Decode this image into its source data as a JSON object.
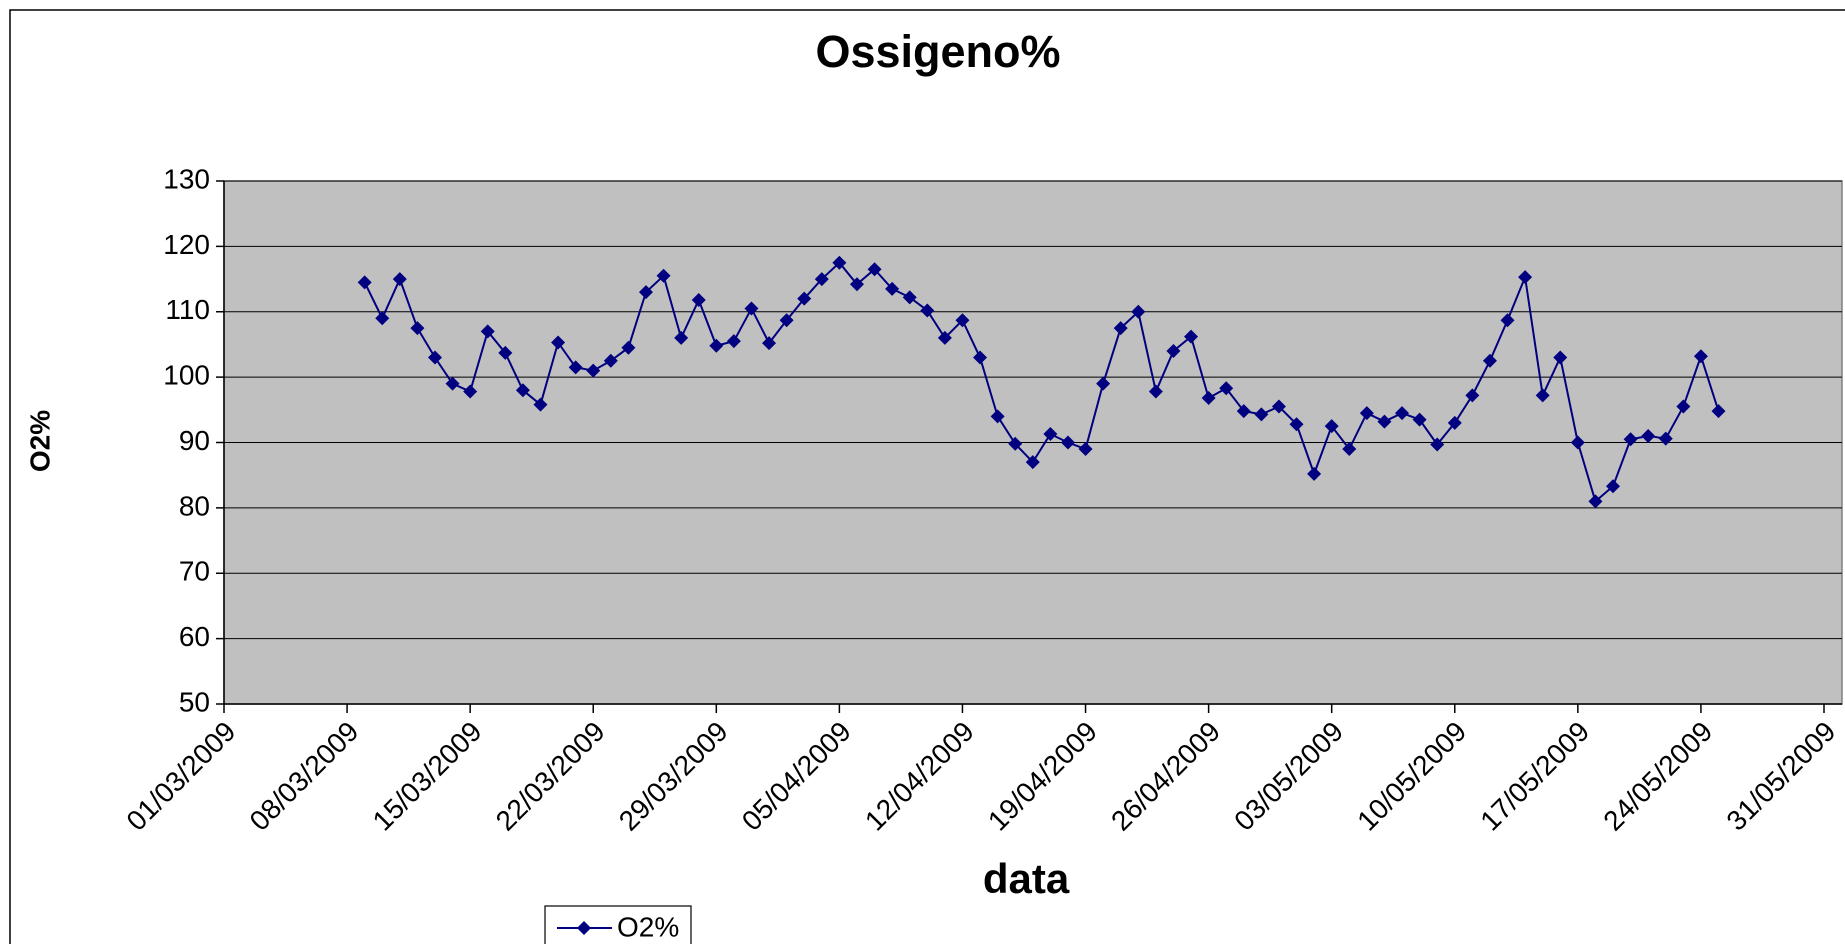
{
  "chart_data": {
    "type": "line",
    "title": "Ossigeno%",
    "xlabel": "data",
    "ylabel": "O2%",
    "x": [
      "09/03/2009",
      "10/03/2009",
      "11/03/2009",
      "12/03/2009",
      "13/03/2009",
      "14/03/2009",
      "15/03/2009",
      "16/03/2009",
      "17/03/2009",
      "18/03/2009",
      "19/03/2009",
      "20/03/2009",
      "21/03/2009",
      "22/03/2009",
      "23/03/2009",
      "24/03/2009",
      "25/03/2009",
      "26/03/2009",
      "27/03/2009",
      "28/03/2009",
      "29/03/2009",
      "30/03/2009",
      "31/03/2009",
      "01/04/2009",
      "02/04/2009",
      "03/04/2009",
      "04/04/2009",
      "05/04/2009",
      "06/04/2009",
      "07/04/2009",
      "08/04/2009",
      "09/04/2009",
      "10/04/2009",
      "11/04/2009",
      "12/04/2009",
      "13/04/2009",
      "14/04/2009",
      "15/04/2009",
      "16/04/2009",
      "17/04/2009",
      "18/04/2009",
      "19/04/2009",
      "20/04/2009",
      "21/04/2009",
      "22/04/2009",
      "23/04/2009",
      "24/04/2009",
      "25/04/2009",
      "26/04/2009",
      "27/04/2009",
      "28/04/2009",
      "29/04/2009",
      "30/04/2009",
      "01/05/2009",
      "02/05/2009",
      "03/05/2009",
      "04/05/2009",
      "05/05/2009",
      "06/05/2009",
      "07/05/2009",
      "08/05/2009",
      "09/05/2009",
      "10/05/2009",
      "11/05/2009",
      "12/05/2009",
      "13/05/2009",
      "14/05/2009",
      "15/05/2009",
      "16/05/2009",
      "17/05/2009",
      "18/05/2009",
      "19/05/2009",
      "20/05/2009",
      "21/05/2009",
      "22/05/2009",
      "23/05/2009",
      "24/05/2009",
      "25/05/2009"
    ],
    "series": [
      {
        "name": "O2%",
        "color": "#000080",
        "values": [
          114.5,
          109,
          115,
          107.5,
          103,
          99,
          97.8,
          107,
          103.7,
          98,
          95.8,
          105.3,
          101.5,
          101,
          102.5,
          104.5,
          113,
          115.5,
          106,
          111.8,
          104.8,
          105.5,
          110.5,
          105.2,
          108.7,
          112,
          115,
          117.5,
          114.2,
          116.5,
          113.5,
          112.2,
          110.2,
          106,
          108.7,
          103,
          94,
          89.8,
          87,
          91.3,
          90,
          89,
          99,
          107.5,
          110,
          97.8,
          104,
          106.2,
          96.8,
          98.3,
          94.8,
          94.3,
          95.5,
          92.8,
          85.2,
          92.5,
          89,
          94.5,
          93.2,
          94.5,
          93.5,
          89.7,
          93,
          97.2,
          102.5,
          108.7,
          115.3,
          97.2,
          103,
          90,
          81,
          83.3,
          90.5,
          91,
          90.6,
          95.5,
          103.2,
          94.8
        ]
      }
    ],
    "xlim": [
      "01/03/2009",
      "31/05/2009"
    ],
    "xticks": [
      "01/03/2009",
      "08/03/2009",
      "15/03/2009",
      "22/03/2009",
      "29/03/2009",
      "05/04/2009",
      "12/04/2009",
      "19/04/2009",
      "26/04/2009",
      "03/05/2009",
      "10/05/2009",
      "17/05/2009",
      "24/05/2009",
      "31/05/2009"
    ],
    "ylim": [
      50,
      130
    ],
    "yticks": [
      50,
      60,
      70,
      80,
      90,
      100,
      110,
      120,
      130
    ],
    "grid": true,
    "plot_background": "#c0c0c0"
  }
}
